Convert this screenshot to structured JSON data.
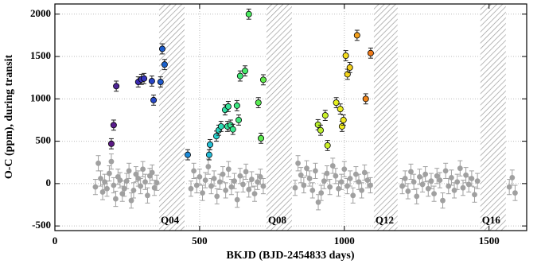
{
  "chart_data": {
    "type": "scatter",
    "xlabel": "BKJD (BJD-2454833 days)",
    "ylabel": "O-C (ppm), during transit",
    "xlim": [
      0,
      1630
    ],
    "ylim": [
      -555,
      2120
    ],
    "xticks": [
      0,
      500,
      1000,
      1500
    ],
    "yticks": [
      -500,
      0,
      500,
      1000,
      1500,
      2000
    ],
    "grid": true,
    "shaded": [
      {
        "range": [
          360,
          448
        ],
        "label": "Q04"
      },
      {
        "range": [
          731,
          819
        ],
        "label": "Q08"
      },
      {
        "range": [
          1102,
          1184
        ],
        "label": "Q12"
      },
      {
        "range": [
          1470,
          1558
        ],
        "label": "Q16"
      }
    ],
    "series": [
      {
        "color": "#a0a0a0",
        "error": 90,
        "x": [
          140,
          150,
          158,
          165,
          172,
          180,
          188,
          195,
          203,
          210,
          218,
          225,
          233,
          240,
          248,
          256,
          264,
          272,
          280,
          288,
          296,
          304,
          312,
          320,
          328,
          336,
          344,
          352,
          470,
          480,
          490,
          500,
          510,
          520,
          530,
          540,
          550,
          560,
          570,
          580,
          590,
          600,
          610,
          620,
          630,
          640,
          650,
          660,
          670,
          680,
          690,
          700,
          710,
          720,
          830,
          840,
          850,
          860,
          870,
          880,
          890,
          900,
          910,
          920,
          930,
          940,
          950,
          960,
          970,
          980,
          990,
          1000,
          1010,
          1020,
          1030,
          1040,
          1050,
          1060,
          1070,
          1080,
          1090,
          1200,
          1210,
          1220,
          1230,
          1240,
          1250,
          1260,
          1270,
          1280,
          1290,
          1300,
          1310,
          1320,
          1330,
          1340,
          1350,
          1360,
          1370,
          1380,
          1390,
          1400,
          1410,
          1420,
          1430,
          1440,
          1450,
          1460,
          1570,
          1580,
          1590
        ],
        "values": [
          -40,
          240,
          60,
          -100,
          20,
          -60,
          120,
          260,
          -20,
          -180,
          80,
          40,
          -120,
          -60,
          30,
          150,
          -200,
          -80,
          110,
          60,
          -30,
          170,
          20,
          -140,
          90,
          130,
          -50,
          10,
          -60,
          150,
          -20,
          80,
          -110,
          40,
          200,
          -30,
          60,
          -150,
          20,
          110,
          -80,
          170,
          -40,
          30,
          -190,
          90,
          -10,
          140,
          -70,
          50,
          -120,
          20,
          80,
          -30,
          -50,
          240,
          100,
          -20,
          180,
          60,
          -80,
          150,
          -220,
          -110,
          30,
          120,
          -40,
          210,
          90,
          -60,
          20,
          170,
          -30,
          60,
          -140,
          110,
          20,
          -80,
          130,
          40,
          -20,
          -30,
          60,
          -90,
          140,
          20,
          -150,
          80,
          -10,
          110,
          -60,
          30,
          -120,
          90,
          40,
          -200,
          150,
          -30,
          70,
          -80,
          20,
          180,
          -50,
          100,
          -10,
          60,
          -130,
          30,
          -40,
          70,
          -110
        ],
        "colors": null
      },
      {
        "color": null,
        "error": 60,
        "x": [
          195,
          203,
          212,
          288,
          299,
          308,
          335,
          341,
          365,
          371,
          379,
          459,
          533,
          536,
          558,
          566,
          574,
          588,
          599,
          596,
          607,
          615,
          629,
          635,
          640,
          657,
          670,
          703,
          712,
          720,
          909,
          918,
          934,
          942,
          972,
          986,
          992,
          997,
          1005,
          1011,
          1019,
          1044,
          1074,
          1091
        ],
        "values": [
          470,
          690,
          1150,
          1200,
          1230,
          1240,
          1210,
          985,
          1200,
          1590,
          1405,
          340,
          340,
          460,
          560,
          630,
          675,
          870,
          910,
          675,
          690,
          640,
          920,
          750,
          1270,
          1330,
          2000,
          955,
          535,
          1225,
          695,
          630,
          805,
          450,
          955,
          880,
          675,
          750,
          1510,
          1290,
          1370,
          1750,
          1000,
          1540
        ],
        "colors": [
          "#5c1a86",
          "#5a1c8e",
          "#4e2496",
          "#3c2cb2",
          "#3830b8",
          "#3434bc",
          "#2844c4",
          "#2648c6",
          "#1e58cc",
          "#1c5ccc",
          "#1a62cc",
          "#1c8ad8",
          "#22bcd8",
          "#24c2d8",
          "#28d0cc",
          "#2ad6c0",
          "#2cdab4",
          "#30e0a4",
          "#34e49a",
          "#32e29c",
          "#36e694",
          "#38e88c",
          "#3ce880",
          "#3ee87a",
          "#40e874",
          "#46ea6a",
          "#4cec60",
          "#58ec52",
          "#5cec4e",
          "#60ec4a",
          "#b8f02c",
          "#bcf02a",
          "#c8f028",
          "#ccf026",
          "#e6f01e",
          "#ecee1c",
          "#f0ec1c",
          "#f0e81c",
          "#f4dc1c",
          "#f4d41c",
          "#f4d01c",
          "#f4a01c",
          "#f0841a",
          "#f07a1a"
        ]
      }
    ]
  }
}
